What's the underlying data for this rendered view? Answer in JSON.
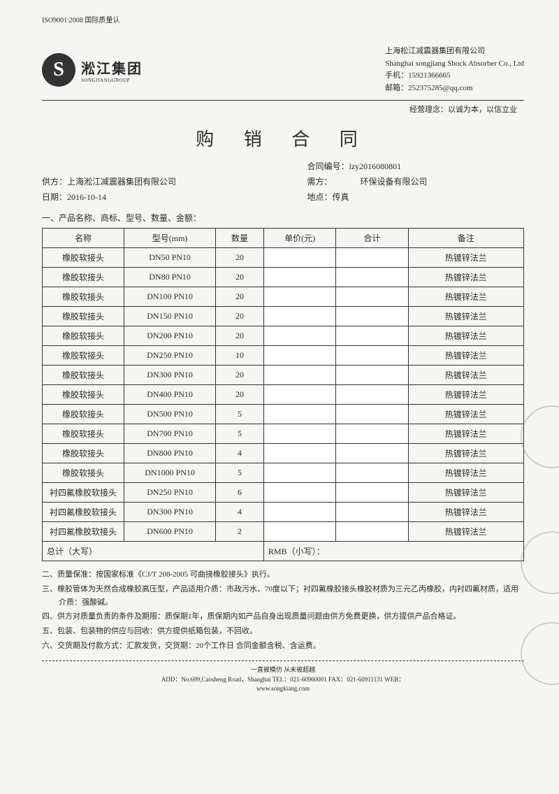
{
  "iso": "ISO9001:2008 国际质量认",
  "logo": {
    "cn": "淞江集团",
    "en": "SONGJIANGGROUP",
    "symbol": "S"
  },
  "company": {
    "name_cn": "上海松江减震器集团有限公司",
    "name_en": "Shanghai songjiang Shock Absorber Co., Ltd",
    "phone_label": "手机：",
    "phone": "15921366665",
    "email_label": "邮箱：",
    "email": "252375285@qq.com"
  },
  "motto": "经营理念：以诚为本，以信立业",
  "title": "购 销 合 同",
  "info": {
    "contract_no_label": "合同编号：",
    "contract_no": "lzy2016080801",
    "supplier_label": "供方：",
    "supplier": "上海淞江减震器集团有限公司",
    "buyer_label": "需方：",
    "buyer": "环保设备有限公司",
    "date_label": "日期：",
    "date": "2016-10-14",
    "location_label": "地点：",
    "location": "传真"
  },
  "section1": "一、产品名称、商标、型号、数量、金额：",
  "columns": {
    "name": "名称",
    "model": "型号(mm)",
    "qty": "数量",
    "price": "单价(元)",
    "total": "合计",
    "note": "备注"
  },
  "rows": [
    {
      "name": "橡胶软接头",
      "model": "DN50  PN10",
      "qty": "20",
      "note": "热镀锌法兰"
    },
    {
      "name": "橡胶软接头",
      "model": "DN80  PN10",
      "qty": "20",
      "note": "热镀锌法兰"
    },
    {
      "name": "橡胶软接头",
      "model": "DN100  PN10",
      "qty": "20",
      "note": "热镀锌法兰"
    },
    {
      "name": "橡胶软接头",
      "model": "DN150  PN10",
      "qty": "20",
      "note": "热镀锌法兰"
    },
    {
      "name": "橡胶软接头",
      "model": "DN200  PN10",
      "qty": "20",
      "note": "热镀锌法兰"
    },
    {
      "name": "橡胶软接头",
      "model": "DN250  PN10",
      "qty": "10",
      "note": "热镀锌法兰"
    },
    {
      "name": "橡胶软接头",
      "model": "DN300  PN10",
      "qty": "20",
      "note": "热镀锌法兰"
    },
    {
      "name": "橡胶软接头",
      "model": "DN400  PN10",
      "qty": "20",
      "note": "热镀锌法兰"
    },
    {
      "name": "橡胶软接头",
      "model": "DN500  PN10",
      "qty": "5",
      "note": "热镀锌法兰"
    },
    {
      "name": "橡胶软接头",
      "model": "DN700  PN10",
      "qty": "5",
      "note": "热镀锌法兰"
    },
    {
      "name": "橡胶软接头",
      "model": "DN800  PN10",
      "qty": "4",
      "note": "热镀锌法兰"
    },
    {
      "name": "橡胶软接头",
      "model": "DN1000  PN10",
      "qty": "5",
      "note": "热镀锌法兰"
    },
    {
      "name": "衬四氟橡胶软接头",
      "model": "DN250  PN10",
      "qty": "6",
      "note": "热镀锌法兰"
    },
    {
      "name": "衬四氟橡胶软接头",
      "model": "DN300  PN10",
      "qty": "4",
      "note": "热镀锌法兰"
    },
    {
      "name": "衬四氟橡胶软接头",
      "model": "DN600  PN10",
      "qty": "2",
      "note": "热镀锌法兰"
    }
  ],
  "total_label": "总计（大写）",
  "rmb_label": "RMB（小写）：",
  "terms": [
    "二、质量保准：按国家标准《CJ/T 208-2005 可曲挠橡胶接头》执行。",
    "三、橡胶管体为天然合成橡胶高压型，产品适用介质：市政污水、70度以下；衬四氟橡胶接头橡胶材质为三元乙丙橡胶，内衬四氟材质，适用介质：强酸碱。",
    "四、供方对质量负责的条件及期限：质保期1年，质保期内如产品自身出现质量问题由供方免费更换，供方提供产品合格证。",
    "五、包装、包装物的供应与回收：供方提供纸箱包装，不回收。",
    "六、交货期及付款方式：汇款发货，交货期：20个工作日 合同金额含税、含运费。"
  ],
  "footer": {
    "slogan": "一直被模仿 从未被超越",
    "addr": "ADD：No.699,Caosheng Road，Shanghai  TEL：021-60960001  FAX：021-60911131  WEB：",
    "web": "www.songkiang.com"
  }
}
